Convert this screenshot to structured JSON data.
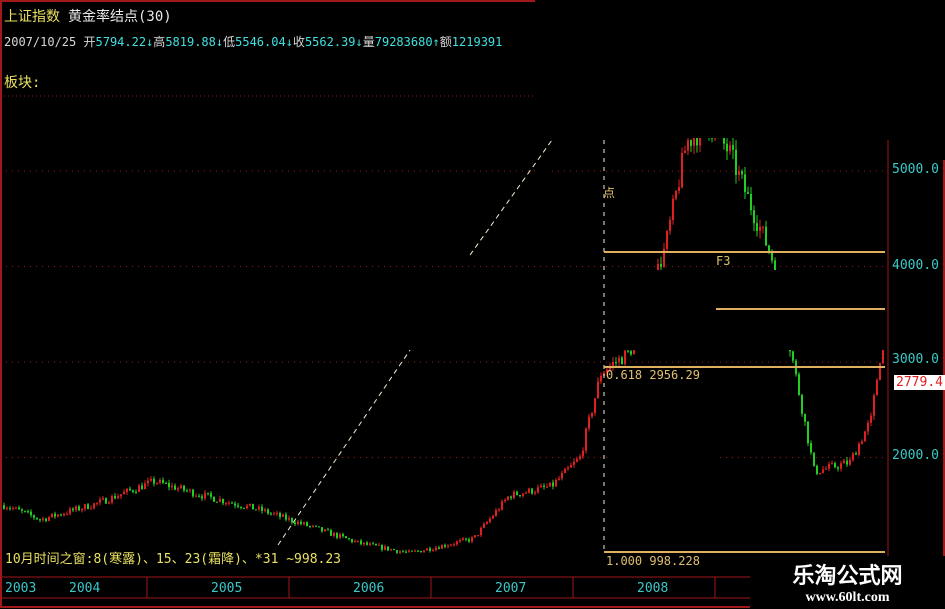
{
  "header": {
    "security": "上证指数",
    "indicator": "黄金率结点(30)",
    "date": "2007/10/25",
    "open_label": "开",
    "open": "5794.22↓",
    "high_label": "高",
    "high": "5819.88↓",
    "low_label": "低",
    "low": "5546.04↓",
    "close_label": "收",
    "close": "5562.39↓",
    "volume_label": "量",
    "volume": "79283680↑",
    "amount_label": "额",
    "amount": "1219391"
  },
  "sector_label": "板块:",
  "annotations": {
    "time_window": "10月时间之窗:8(寒露)、15、23(霜降)、*31 ~998.23",
    "fib_0618": "0.618  2956.29",
    "fib_1000": "1.000  998.228",
    "f3": "F3",
    "point_label": "点"
  },
  "current_price": "2779.4",
  "watermark": {
    "name": "乐淘公式网",
    "url": "www.60lt.com"
  },
  "colors": {
    "up": "#e02020",
    "down": "#20d020",
    "fib_line": "#e0b060",
    "grid": "#a01818",
    "axis_text": "#3cc8c8"
  },
  "chart_data": {
    "type": "candlestick",
    "x_ticks": [
      "2003",
      "2004",
      "2005",
      "2006",
      "2007",
      "2008"
    ],
    "y_ticks": [
      "5000.0",
      "4000.0",
      "3000.0",
      "2000.0"
    ],
    "ylim": [
      900,
      5600
    ],
    "grid": true,
    "trend": {
      "x": [
        2003.0,
        2003.25,
        2003.65,
        2004.05,
        2004.4,
        2004.8,
        2005.0,
        2005.5,
        2005.85,
        2006.3,
        2006.55,
        2006.85,
        2007.05,
        2007.2,
        2007.4,
        2007.65,
        2007.8,
        2007.95,
        2008.1,
        2008.4,
        2008.55,
        2008.7,
        2008.95,
        2009.1,
        2009.2,
        2009.3
      ],
      "close": [
        1500,
        1350,
        1520,
        1750,
        1600,
        1450,
        1350,
        1100,
        1000,
        1150,
        1600,
        1700,
        2000,
        2900,
        3100,
        4200,
        5300,
        5500,
        5200,
        4100,
        3000,
        1850,
        1950,
        2400,
        3450,
        2780
      ]
    },
    "fib_levels": [
      {
        "ratio": "0.618",
        "value": 2956.29
      },
      {
        "ratio": "1.000",
        "value": 998.228
      }
    ]
  }
}
